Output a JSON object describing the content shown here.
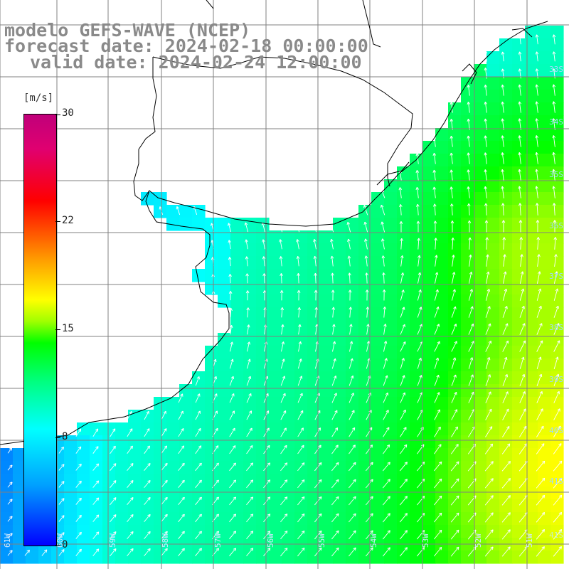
{
  "title": {
    "line1": "modelo GEFS-WAVE (NCEP)",
    "line2": "forecast date: 2024-02-18 00:00:00",
    "line3": "valid date: 2024-02-24 12:00:00"
  },
  "colorbar": {
    "unit": "[m/s]",
    "ticks": [
      "30",
      "22",
      "15",
      "8",
      "0"
    ]
  },
  "lat_labels": [
    "33S",
    "34S",
    "35S",
    "36S",
    "37S",
    "38S",
    "39S",
    "40S",
    "41S"
  ],
  "lon_labels": [
    "61W",
    "60W",
    "59W",
    "58W",
    "57W",
    "56W",
    "55W",
    "54W",
    "53W",
    "52W",
    "51W"
  ],
  "colors": {
    "land": "#ffffff",
    "grid": "#808080",
    "title": "#8a8a8a",
    "arrow": "#ffffff",
    "coast": "#000000"
  }
}
